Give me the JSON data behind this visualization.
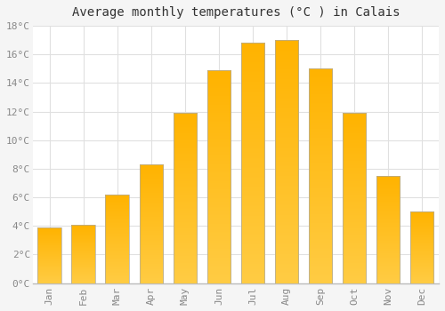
{
  "title": "Average monthly temperatures (°C ) in Calais",
  "months": [
    "Jan",
    "Feb",
    "Mar",
    "Apr",
    "May",
    "Jun",
    "Jul",
    "Aug",
    "Sep",
    "Oct",
    "Nov",
    "Dec"
  ],
  "values": [
    3.9,
    4.1,
    6.2,
    8.3,
    11.9,
    14.9,
    16.8,
    17.0,
    15.0,
    11.9,
    7.5,
    5.0
  ],
  "bar_color_bottom": "#FFB300",
  "bar_color_top": "#FFCC44",
  "bar_edge_color": "#aaaaaa",
  "ylim": [
    0,
    18
  ],
  "yticks": [
    0,
    2,
    4,
    6,
    8,
    10,
    12,
    14,
    16,
    18
  ],
  "ytick_labels": [
    "0°C",
    "2°C",
    "4°C",
    "6°C",
    "8°C",
    "10°C",
    "12°C",
    "14°C",
    "16°C",
    "18°C"
  ],
  "background_color": "#f5f5f5",
  "plot_bg_color": "#ffffff",
  "grid_color": "#e0e0e0",
  "title_fontsize": 10,
  "tick_fontsize": 8,
  "tick_color": "#888888",
  "bar_width": 0.7
}
